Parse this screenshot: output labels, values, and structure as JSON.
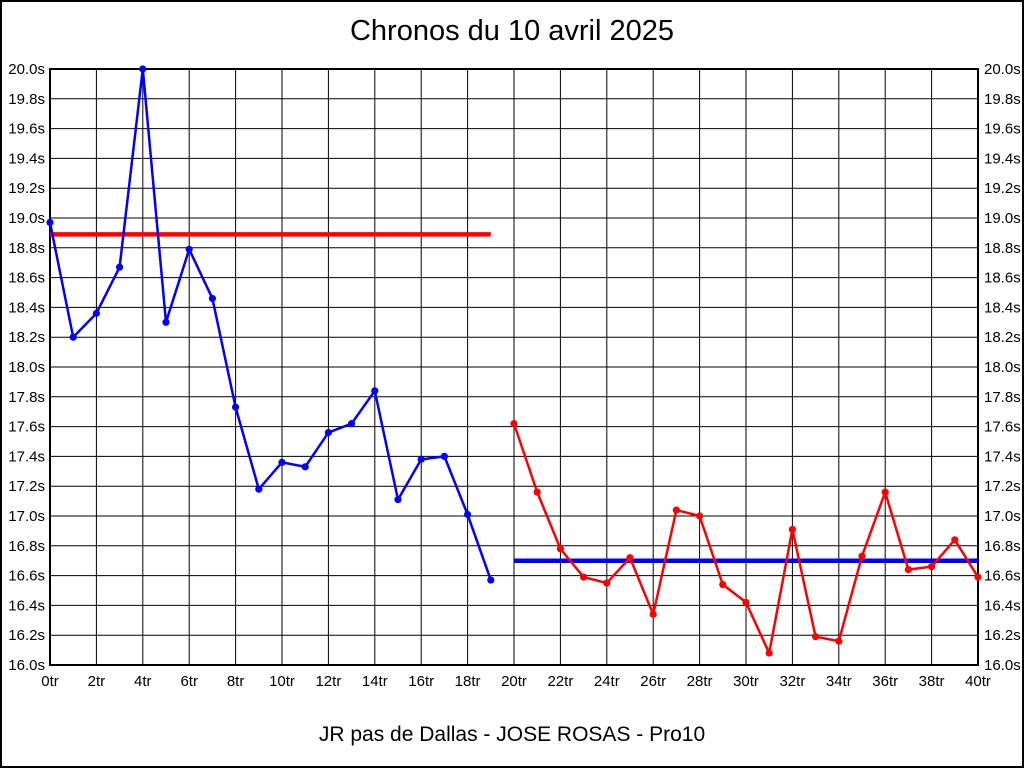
{
  "title": "Chronos du 10 avril 2025",
  "caption": "JR pas de Dallas - JOSE ROSAS - Pro10",
  "colors": {
    "series_blue": "#0000ff",
    "series_red": "#ff0000",
    "grid": "#000000",
    "background": "#ffffff",
    "text": "#000000"
  },
  "chart_data": {
    "type": "line",
    "title": "Chronos du 10 avril 2025",
    "subtitle": "JR pas de Dallas - JOSE ROSAS - Pro10",
    "xlabel": "",
    "ylabel": "",
    "x_suffix": "tr",
    "y_suffix": "s",
    "xlim": [
      0,
      40
    ],
    "ylim": [
      16.0,
      20.0
    ],
    "grid": true,
    "legend": "none",
    "x_ticks": [
      0,
      2,
      4,
      6,
      8,
      10,
      12,
      14,
      16,
      18,
      20,
      22,
      24,
      26,
      28,
      30,
      32,
      34,
      36,
      38,
      40
    ],
    "y_ticks": [
      16.0,
      16.2,
      16.4,
      16.6,
      16.8,
      17.0,
      17.2,
      17.4,
      17.6,
      17.8,
      18.0,
      18.2,
      18.4,
      18.6,
      18.8,
      19.0,
      19.2,
      19.4,
      19.6,
      19.8,
      20.0
    ],
    "series": [
      {
        "name": "laps-session-1-blue",
        "color": "#0000ff",
        "x": [
          0,
          1,
          2,
          3,
          4,
          5,
          6,
          7,
          8,
          9,
          10,
          11,
          12,
          13,
          14,
          15,
          16,
          17,
          18,
          19
        ],
        "y": [
          18.97,
          18.2,
          18.36,
          18.67,
          20.0,
          18.3,
          18.79,
          18.46,
          17.73,
          17.18,
          17.36,
          17.33,
          17.56,
          17.62,
          17.84,
          17.11,
          17.38,
          17.4,
          17.01,
          16.57
        ]
      },
      {
        "name": "laps-session-2-red",
        "color": "#ff0000",
        "x": [
          20,
          21,
          22,
          23,
          24,
          25,
          26,
          27,
          28,
          29,
          30,
          31,
          32,
          33,
          34,
          35,
          36,
          37,
          38,
          39,
          40
        ],
        "y": [
          17.62,
          17.16,
          16.78,
          16.59,
          16.55,
          16.72,
          16.34,
          17.04,
          17.0,
          16.54,
          16.42,
          16.08,
          16.91,
          16.19,
          16.16,
          16.73,
          17.16,
          16.64,
          16.66,
          16.84,
          16.59
        ]
      }
    ],
    "reference_lines": [
      {
        "name": "ref-line-red-session-1",
        "color": "#ff0000",
        "y": 18.89,
        "x_start": 0,
        "x_end": 19
      },
      {
        "name": "ref-line-blue-session-2",
        "color": "#0000ff",
        "y": 16.7,
        "x_start": 20,
        "x_end": 40
      }
    ]
  }
}
